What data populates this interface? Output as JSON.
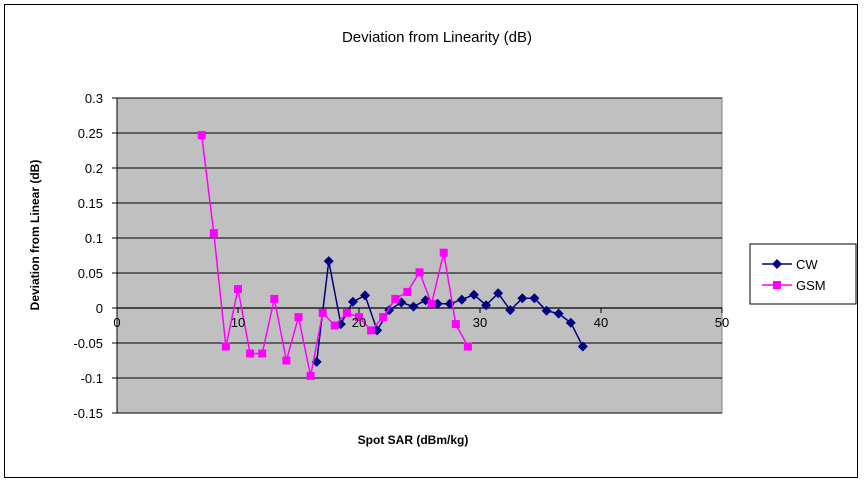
{
  "chart_data": {
    "type": "line",
    "title": "Deviation from Linearity (dB)",
    "xlabel": "Spot SAR (dBm/kg)",
    "ylabel": "Deviation from Linear (dB)",
    "xlim": [
      0,
      50
    ],
    "ylim": [
      -0.15,
      0.3
    ],
    "x_ticks": [
      "0",
      "10",
      "20",
      "30",
      "40",
      "50"
    ],
    "y_ticks": [
      "0.3",
      "0.25",
      "0.2",
      "0.15",
      "0.1",
      "0.05",
      "0",
      "-0.05",
      "-0.1",
      "-0.15"
    ],
    "grid": true,
    "legend_position": "right",
    "plot_background": "#c0c0c0",
    "series": [
      {
        "name": "CW",
        "color": "#000080",
        "marker": "diamond",
        "x": [
          16.5,
          17.5,
          18.5,
          19.5,
          20.5,
          21.5,
          22.5,
          23.5,
          24.5,
          25.5,
          26.5,
          27.5,
          28.5,
          29.5,
          30.5,
          31.5,
          32.5,
          33.5,
          34.5,
          35.5,
          36.5,
          37.5,
          38.5
        ],
        "y": [
          -0.077,
          0.067,
          -0.023,
          0.009,
          0.018,
          -0.032,
          -0.003,
          0.008,
          0.002,
          0.011,
          0.006,
          0.006,
          0.012,
          0.019,
          0.004,
          0.021,
          -0.003,
          0.014,
          0.014,
          -0.004,
          -0.008,
          -0.021,
          -0.055
        ]
      },
      {
        "name": "GSM",
        "color": "#ff00ff",
        "marker": "square",
        "x": [
          7,
          8,
          9,
          10,
          11,
          12,
          13,
          14,
          15,
          16,
          17,
          18,
          19,
          20,
          21,
          22,
          23,
          24,
          25,
          26,
          27,
          28,
          29
        ],
        "y": [
          0.247,
          0.107,
          -0.055,
          0.027,
          -0.065,
          -0.065,
          0.013,
          -0.075,
          -0.013,
          -0.097,
          -0.007,
          -0.025,
          -0.007,
          -0.013,
          -0.032,
          -0.013,
          0.013,
          0.023,
          0.051,
          0.006,
          0.079,
          -0.023,
          -0.055
        ]
      }
    ]
  }
}
